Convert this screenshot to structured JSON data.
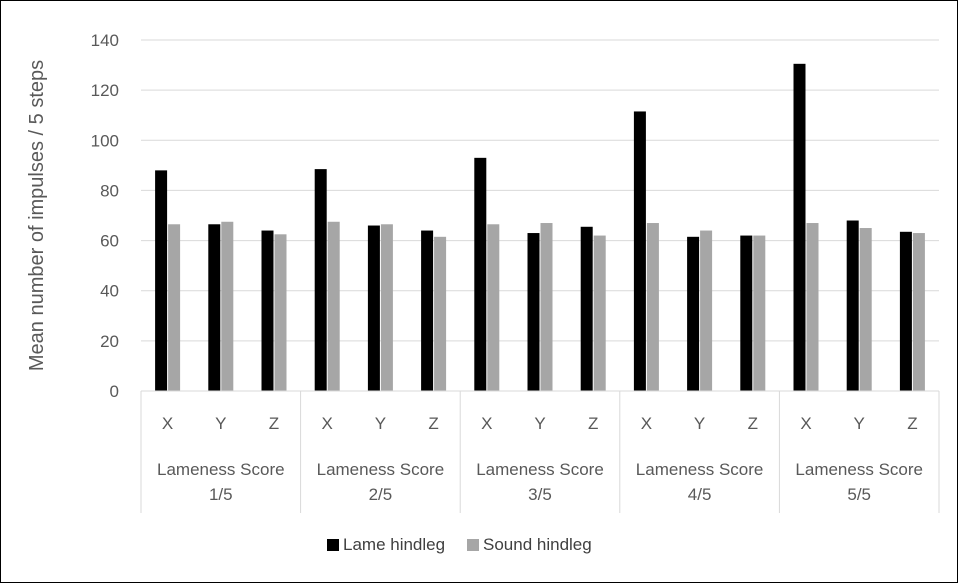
{
  "chart_data": {
    "type": "bar",
    "title": "",
    "ylabel": "Mean number of impulses / 5 steps",
    "xlabel": "",
    "ylim": [
      0,
      140
    ],
    "ytick_step": 20,
    "grid": true,
    "legend_position": "bottom",
    "groups": [
      "Lameness Score 1/5",
      "Lameness Score 2/5",
      "Lameness Score 3/5",
      "Lameness Score 4/5",
      "Lameness Score 5/5"
    ],
    "group_lines": [
      [
        "Lameness Score",
        "1/5"
      ],
      [
        "Lameness Score",
        "2/5"
      ],
      [
        "Lameness Score",
        "3/5"
      ],
      [
        "Lameness Score",
        "4/5"
      ],
      [
        "Lameness Score",
        "5/5"
      ]
    ],
    "subcategories": [
      "X",
      "Y",
      "Z"
    ],
    "series": [
      {
        "name": "Lame hindleg",
        "color": "#000000",
        "values": [
          88,
          66.5,
          64,
          88.5,
          66,
          64,
          93,
          63,
          65.5,
          111.5,
          61.5,
          62,
          130.5,
          68,
          63.5
        ]
      },
      {
        "name": "Sound hindleg",
        "color": "#a6a6a6",
        "values": [
          66.5,
          67.5,
          62.5,
          67.5,
          66.5,
          61.5,
          66.5,
          67,
          62,
          67,
          64,
          62,
          67,
          65,
          63
        ]
      }
    ]
  }
}
